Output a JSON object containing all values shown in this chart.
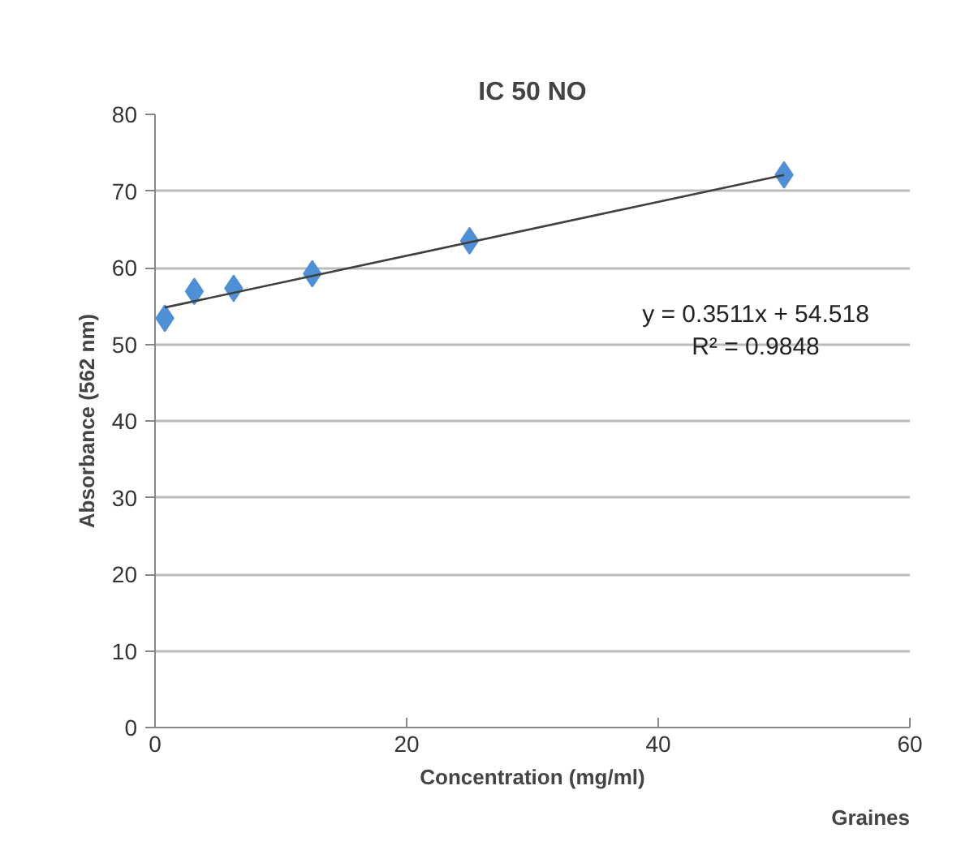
{
  "chart_data": {
    "type": "scatter",
    "title": "IC 50 NO",
    "xlabel": "Concentration (mg/ml)",
    "ylabel": "Absorbance (562 nm)",
    "x": [
      0.78,
      3.125,
      6.25,
      12.5,
      25,
      50
    ],
    "series": [
      {
        "color": "#4f8fd6",
        "values": [
          53.4,
          56.9,
          57.3,
          59.2,
          63.5,
          72.1
        ]
      },
      {
        "type": "line",
        "marker": "none",
        "color": "#404040",
        "x": [
          0.78,
          50
        ],
        "values": [
          54.8,
          72.1
        ]
      }
    ],
    "xlim": [
      0,
      60
    ],
    "xticks": [
      0,
      20,
      40,
      60
    ],
    "ylim": [
      0,
      80
    ],
    "yticks": [
      0,
      10,
      20,
      30,
      40,
      50,
      60,
      70,
      80
    ],
    "grid": "y",
    "marker": "diamond",
    "line_style": "solid",
    "annotations": [
      "y = 0.3511x + 54.518",
      "R² = 0.9848",
      "Graines"
    ]
  }
}
